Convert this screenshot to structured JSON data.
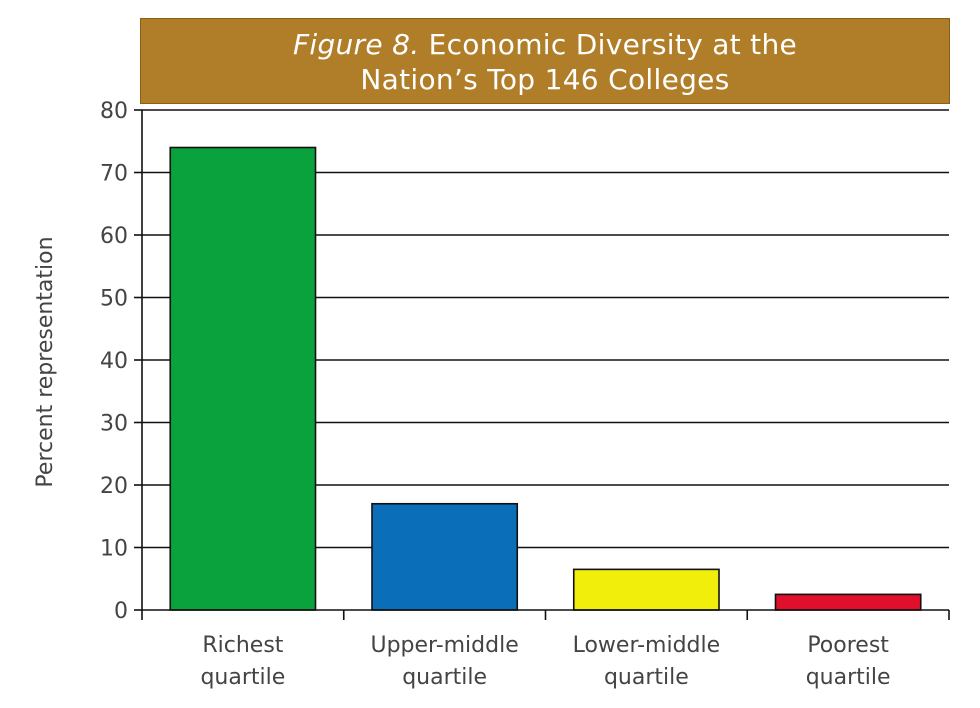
{
  "chart_data": {
    "type": "bar",
    "title_prefix": "Figure 8.",
    "title_line1": "Economic Diversity at the",
    "title_line2": "Nation’s Top 146 Colleges",
    "ylabel": "Percent representation",
    "ylim": [
      0,
      80
    ],
    "yticks": [
      0,
      10,
      20,
      30,
      40,
      50,
      60,
      70,
      80
    ],
    "grid": true,
    "categories": [
      [
        "Richest",
        "quartile"
      ],
      [
        "Upper-middle",
        "quartile"
      ],
      [
        "Lower-middle",
        "quartile"
      ],
      [
        "Poorest",
        "quartile"
      ]
    ],
    "values": [
      74,
      17,
      6.5,
      2.5
    ],
    "colors": [
      "#0aa23c",
      "#0a6fb8",
      "#f0ee0a",
      "#e0102c"
    ]
  }
}
